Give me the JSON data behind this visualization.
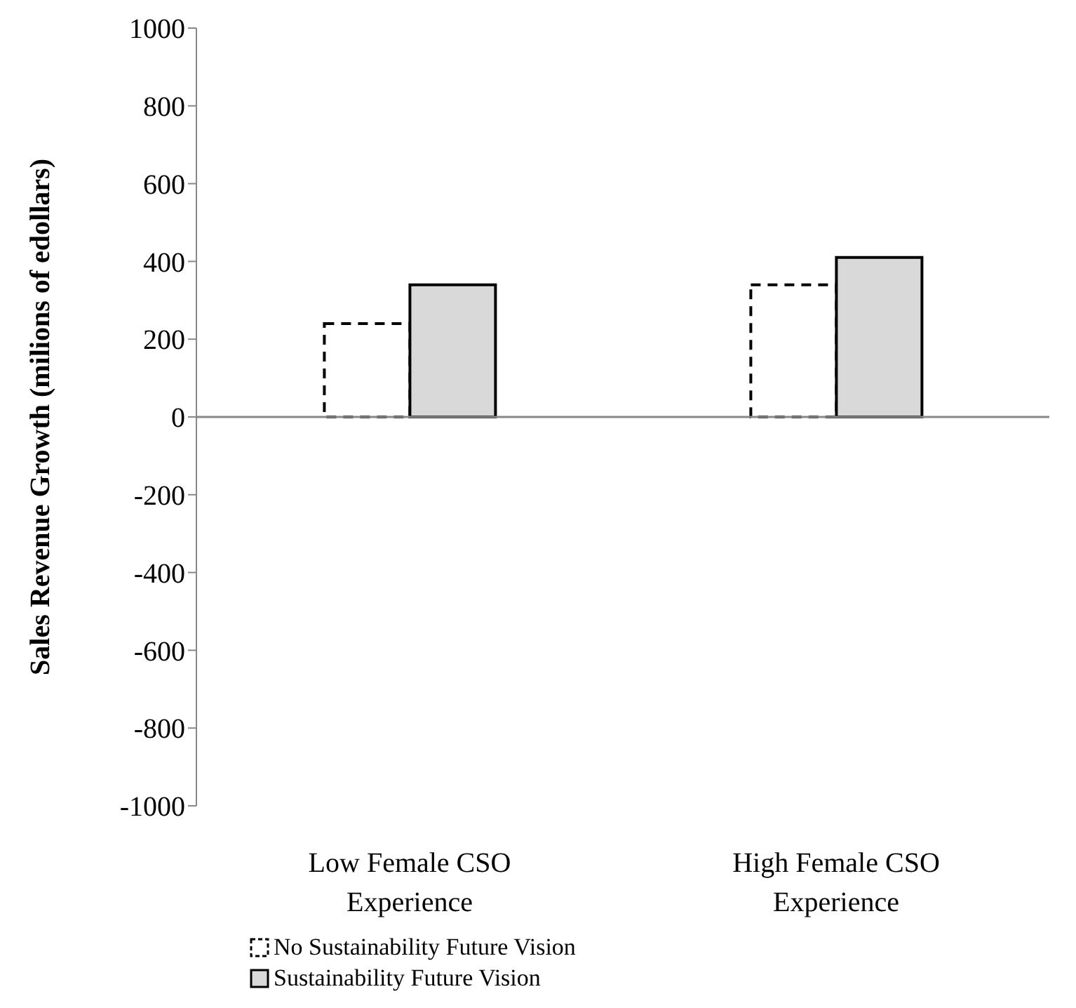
{
  "chart_data": {
    "type": "bar",
    "ylabel": "Sales Revenue Growth (milions of edollars)",
    "categories": [
      "Low Female CSO Experience",
      "High Female CSO Experience"
    ],
    "series": [
      {
        "name": "No Sustainability Future Vision",
        "color": "#ffffff",
        "line_style": "dashed",
        "values": [
          240,
          340
        ]
      },
      {
        "name": "Sustainability Future Vision",
        "color": "#d9d9d9",
        "values": [
          340,
          410
        ]
      }
    ],
    "ylim": [
      -1000,
      1000
    ],
    "yticks": [
      -1000,
      -800,
      -600,
      -400,
      -200,
      0,
      200,
      400,
      600,
      800,
      1000
    ],
    "legend": "bottom"
  }
}
